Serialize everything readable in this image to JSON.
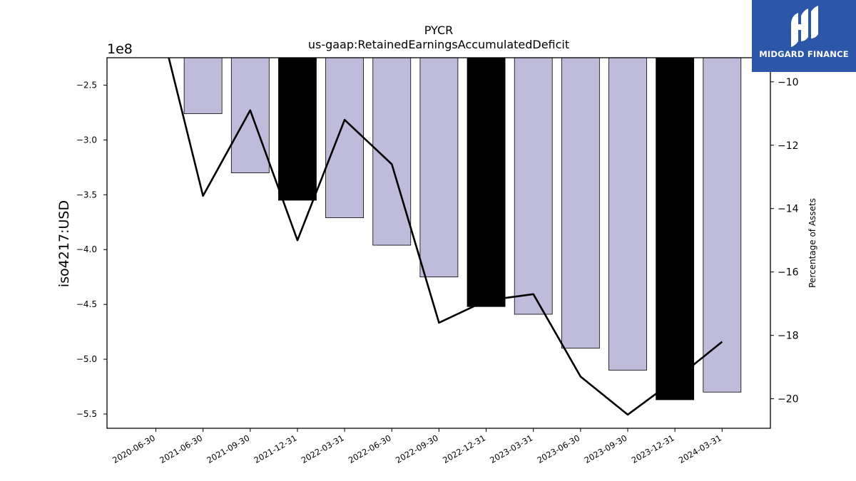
{
  "chart_data": {
    "type": "bar+line",
    "title": "PYCR",
    "subtitle": "us-gaap:RetainedEarningsAccumulatedDeficit",
    "ylabel": "iso4217:USD",
    "y_offset_label": "1e8",
    "y2label": "Percentage of Assets",
    "categories": [
      "2020-06-30",
      "2021-06-30",
      "2021-09-30",
      "2021-12-31",
      "2022-03-31",
      "2022-06-30",
      "2022-09-30",
      "2022-12-31",
      "2023-03-31",
      "2023-06-30",
      "2023-09-30",
      "2023-12-31",
      "2024-03-31"
    ],
    "bars": {
      "name": "",
      "values_1e8": [
        null,
        -2.76,
        -3.3,
        -3.55,
        -3.71,
        -3.96,
        -4.25,
        -4.52,
        -4.59,
        -4.9,
        -5.1,
        -5.37,
        -5.3
      ],
      "highlight": [
        false,
        false,
        false,
        true,
        false,
        false,
        false,
        true,
        false,
        false,
        false,
        true,
        false
      ],
      "color": "#bebbdb",
      "highlight_color": "#000000"
    },
    "line": {
      "name": "",
      "values_pct": [
        -7.6,
        -13.6,
        -10.9,
        -15.0,
        -11.2,
        -12.6,
        -17.6,
        -16.9,
        -16.7,
        -19.3,
        -20.5,
        -19.4,
        -18.2
      ],
      "color": "#000000"
    },
    "ylim": [
      -5.63,
      -2.25
    ],
    "y_ticks": [
      -2.5,
      -3.0,
      -3.5,
      -4.0,
      -4.5,
      -5.0,
      -5.5
    ],
    "y_tick_labels": [
      "−2.5",
      "−3.0",
      "−3.5",
      "−4.0",
      "−4.5",
      "−5.0",
      "−5.5"
    ],
    "y2lim": [
      -20.93,
      -9.24
    ],
    "y2_ticks": [
      -10,
      -12,
      -14,
      -16,
      -18,
      -20
    ],
    "y2_tick_labels": [
      "−10",
      "−12",
      "−14",
      "−16",
      "−18",
      "−20"
    ],
    "grid": false,
    "legend": "none"
  },
  "logo": {
    "text": "MIDGARD FINANCE",
    "bg_color": "#2c56a8"
  }
}
